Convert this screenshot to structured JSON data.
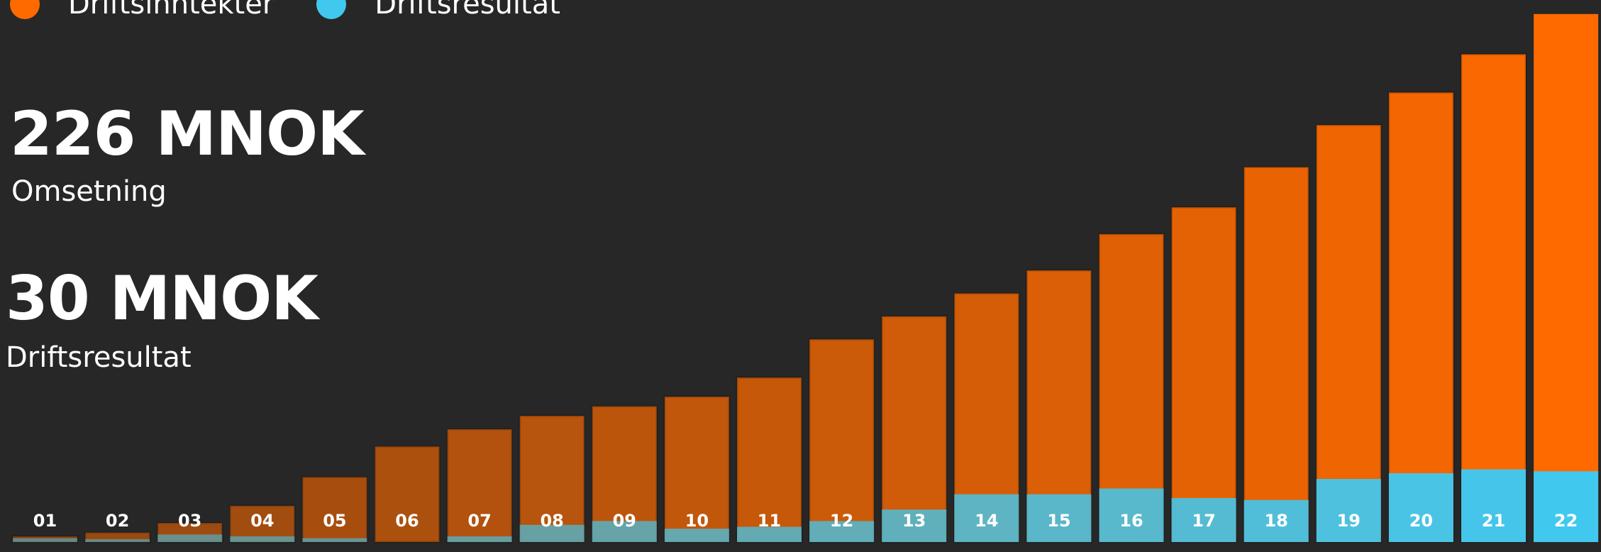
{
  "legend": {
    "items": [
      {
        "label": "Driftsinntekter",
        "color": "#ff6a00"
      },
      {
        "label": "Driftsresultat",
        "color": "#41c8ef"
      }
    ]
  },
  "kpis": [
    {
      "value": "226 MNOK",
      "label": "Omsetning"
    },
    {
      "value": "30 MNOK",
      "label": "Driftsresultat"
    }
  ],
  "chart_data": {
    "type": "bar",
    "categories": [
      "01",
      "02",
      "03",
      "04",
      "05",
      "06",
      "07",
      "08",
      "09",
      "10",
      "11",
      "12",
      "13",
      "14",
      "15",
      "16",
      "17",
      "18",
      "19",
      "20",
      "21",
      "22"
    ],
    "series": [
      {
        "name": "Driftsinntekter",
        "color": "#ff6a00",
        "values": [
          3,
          5,
          10,
          19,
          34,
          50,
          59,
          66,
          71,
          76,
          86,
          106,
          118,
          130,
          142,
          161,
          175,
          196,
          218,
          235,
          255,
          276
        ]
      },
      {
        "name": "Driftsresultat",
        "color": "#41c8ef",
        "values": [
          2,
          1.5,
          4,
          3,
          2,
          0,
          3,
          9,
          11,
          7,
          8,
          11,
          17,
          25,
          25,
          28,
          23,
          22,
          33,
          36,
          38,
          37
        ]
      }
    ],
    "ylim": [
      0,
      280
    ],
    "grid": false,
    "legend_position": "top-left"
  }
}
